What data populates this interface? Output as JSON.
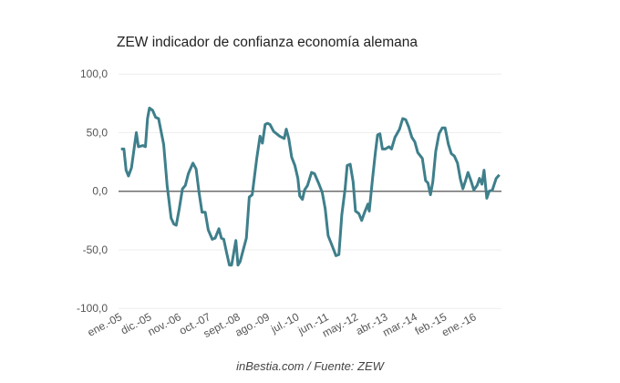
{
  "chart_data": {
    "type": "line",
    "title": "ZEW indicador de confianza economía alemana",
    "source": "inBestia.com / Fuente: ZEW",
    "xlabel": "",
    "ylabel": "",
    "x_unit": "months since ene.-05",
    "xlim": [
      0,
      141
    ],
    "ylim": [
      -100,
      100
    ],
    "y_ticks": [
      100,
      50,
      0,
      -50,
      -100
    ],
    "y_tick_labels": [
      "100,0",
      "50,0",
      "0,0",
      "-50,0",
      "-100,0"
    ],
    "x_ticks": [
      0,
      11,
      22,
      33,
      44,
      55,
      66,
      77,
      88,
      99,
      110,
      121,
      132
    ],
    "x_tick_labels": [
      "ene.-05",
      "dic.-05",
      "nov.-06",
      "oct.-07",
      "sept.-08",
      "ago.-09",
      "jul.-10",
      "jun.-11",
      "may.-12",
      "abr.-13",
      "mar.-14",
      "feb.-15",
      "ene.-16"
    ],
    "grid": true,
    "series": [
      {
        "name": "ZEW",
        "color": "#3e7f8b",
        "x": [
          0,
          1.1,
          1.9,
          2.8,
          3.9,
          5.7,
          6.5,
          8.2,
          9.1,
          9.9,
          10.6,
          11.8,
          12.9,
          14.0,
          15.9,
          17.2,
          18.7,
          19.7,
          20.6,
          21.7,
          22.9,
          24.0,
          25.1,
          26.8,
          28.0,
          29.1,
          30.2,
          31.4,
          32.5,
          34.0,
          35.1,
          36.5,
          37.4,
          38.3,
          39.4,
          40.4,
          41.2,
          42.8,
          43.6,
          44.4,
          46.7,
          47.8,
          48.9,
          50.6,
          51.8,
          52.7,
          53.7,
          54.6,
          55.5,
          56.9,
          58.0,
          59.1,
          60.8,
          61.6,
          62.5,
          63.6,
          64.8,
          65.9,
          66.6,
          67.6,
          68.4,
          69.5,
          71.0,
          72.1,
          73.8,
          75.0,
          76.1,
          77.2,
          78.4,
          80.1,
          81.2,
          82.3,
          83.5,
          84.3,
          85.4,
          86.5,
          87.4,
          88.6,
          89.7,
          90.8,
          92.0,
          92.5,
          93.7,
          94.8,
          95.6,
          96.5,
          97.4,
          98.5,
          99.9,
          100.8,
          102.1,
          103.8,
          105.0,
          106.1,
          107.2,
          108.4,
          109.5,
          110.6,
          112.3,
          113.5,
          114.4,
          115.3,
          116.2,
          117.3,
          118.5,
          119.7,
          120.8,
          122.0,
          123.1,
          124.2,
          125.4,
          126.5,
          127.4,
          128.4,
          129.3,
          130.4,
          131.5,
          132.7,
          133.6,
          134.5,
          135.3,
          136.3,
          137.2,
          138.4,
          139.8,
          141
        ],
        "values": [
          36,
          36,
          18,
          13,
          20,
          50,
          38,
          39,
          38,
          62,
          71,
          69,
          63,
          62,
          40,
          5,
          -23,
          -28,
          -29,
          -15,
          2,
          5,
          15,
          24,
          19,
          -1,
          -18,
          -18,
          -33,
          -41,
          -40,
          -32,
          -40,
          -41,
          -53,
          -63,
          -63,
          -42,
          -63,
          -60,
          -40,
          -5,
          -3,
          28,
          47,
          41,
          57,
          58,
          57,
          51,
          49,
          47,
          45,
          53,
          45,
          29,
          22,
          11,
          -4,
          -7,
          1,
          5,
          16,
          15,
          6,
          -1,
          -15,
          -38,
          -45,
          -55,
          -54,
          -20,
          2,
          22,
          23,
          8,
          -17,
          -19,
          -25,
          -18,
          -11,
          -17,
          10,
          33,
          48,
          49,
          36,
          36,
          38,
          36,
          46,
          53,
          62,
          61,
          55,
          46,
          42,
          33,
          28,
          9,
          7,
          -3,
          8,
          34,
          49,
          54,
          54,
          40,
          32,
          30,
          24,
          10,
          2,
          9,
          16,
          9,
          1,
          5,
          11,
          6,
          18,
          -6,
          0,
          1,
          11,
          14
        ]
      }
    ]
  }
}
